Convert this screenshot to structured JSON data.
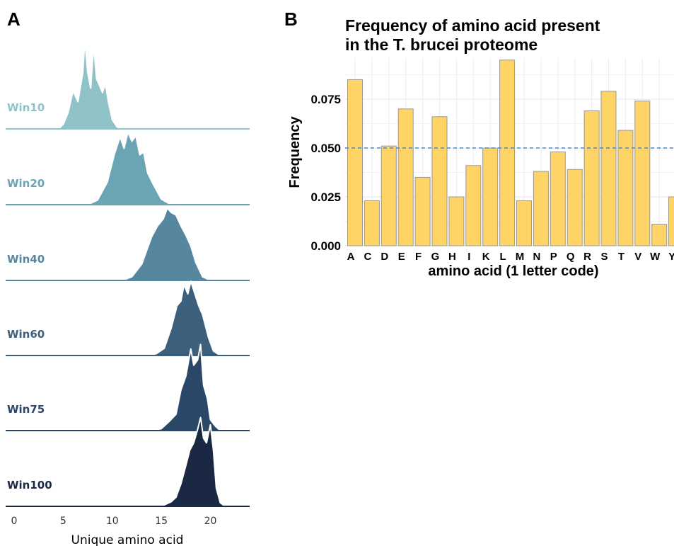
{
  "panels": {
    "a_letter": "A",
    "b_letter": "B"
  },
  "chart_data": [
    {
      "type": "area",
      "subtype": "ridgeline",
      "xlabel": "Unique amino acid",
      "ylabel": "",
      "xlim": [
        0,
        24
      ],
      "xticks": [
        0,
        5,
        10,
        15,
        20
      ],
      "grid": false,
      "series": [
        {
          "name": "Win10",
          "color": "#8fc3c7",
          "x": [
            4.5,
            5.0,
            5.5,
            6.0,
            6.5,
            7.0,
            7.2,
            7.5,
            7.8,
            8.1,
            8.4,
            8.7,
            9.0,
            9.3,
            9.6,
            10.0,
            10.5,
            11.0
          ],
          "y": [
            0.0,
            0.05,
            0.18,
            0.42,
            0.3,
            0.62,
            0.98,
            0.62,
            0.45,
            0.92,
            0.55,
            0.48,
            0.4,
            0.5,
            0.3,
            0.1,
            0.02,
            0.0
          ]
        },
        {
          "name": "Win20",
          "color": "#6ba5b5",
          "x": [
            7.5,
            8.5,
            9.5,
            10.2,
            10.8,
            11.2,
            11.6,
            12.0,
            12.4,
            12.8,
            13.2,
            13.6,
            14.2,
            15.0,
            16.0
          ],
          "y": [
            0.0,
            0.05,
            0.25,
            0.55,
            0.75,
            0.62,
            0.8,
            0.7,
            0.76,
            0.55,
            0.58,
            0.35,
            0.22,
            0.06,
            0.0
          ]
        },
        {
          "name": "Win40",
          "color": "#56879f",
          "x": [
            11.0,
            12.0,
            13.0,
            14.0,
            14.6,
            15.2,
            15.6,
            16.0,
            16.5,
            17.0,
            17.5,
            18.0,
            18.5,
            19.2,
            20.0
          ],
          "y": [
            0.0,
            0.04,
            0.18,
            0.48,
            0.6,
            0.68,
            0.8,
            0.75,
            0.72,
            0.6,
            0.5,
            0.38,
            0.2,
            0.04,
            0.0
          ]
        },
        {
          "name": "Win60",
          "color": "#3c5f7c",
          "x": [
            13.5,
            14.5,
            15.3,
            16.0,
            16.6,
            17.0,
            17.3,
            17.7,
            18.0,
            18.3,
            18.8,
            19.2,
            19.8,
            20.3,
            21.0
          ],
          "y": [
            0.0,
            0.02,
            0.08,
            0.3,
            0.55,
            0.6,
            0.78,
            0.68,
            0.82,
            0.72,
            0.55,
            0.45,
            0.2,
            0.05,
            0.0
          ]
        },
        {
          "name": "Win75",
          "color": "#2b4767",
          "x": [
            14.0,
            15.0,
            15.8,
            16.5,
            17.0,
            17.5,
            18.0,
            18.3,
            18.7,
            19.0,
            19.3,
            19.7,
            20.0,
            20.5,
            21.0
          ],
          "y": [
            0.0,
            0.02,
            0.1,
            0.18,
            0.45,
            0.6,
            0.9,
            0.72,
            0.78,
            0.95,
            0.5,
            0.35,
            0.12,
            0.05,
            0.0
          ]
        },
        {
          "name": "Win100",
          "color": "#1b2844",
          "x": [
            15.0,
            16.0,
            16.5,
            17.0,
            17.5,
            17.9,
            18.3,
            18.7,
            19.0,
            19.3,
            19.6,
            20.0,
            20.3,
            20.6,
            21.0,
            21.5
          ],
          "y": [
            0.0,
            0.05,
            0.1,
            0.25,
            0.45,
            0.62,
            0.7,
            0.85,
            0.98,
            0.75,
            0.7,
            0.9,
            0.62,
            0.2,
            0.04,
            0.0
          ]
        }
      ]
    },
    {
      "type": "bar",
      "title": "Frequency of amino acid present in the T. brucei proteome",
      "title_lines": [
        "Frequency of amino acid present",
        "in the T. brucei proteome"
      ],
      "xlabel": "amino acid (1 letter code)",
      "ylabel": "Frequency",
      "categories": [
        "A",
        "C",
        "D",
        "E",
        "F",
        "G",
        "H",
        "I",
        "K",
        "L",
        "M",
        "N",
        "P",
        "Q",
        "R",
        "S",
        "T",
        "V",
        "W",
        "Y"
      ],
      "values": [
        0.085,
        0.023,
        0.051,
        0.07,
        0.035,
        0.066,
        0.025,
        0.041,
        0.05,
        0.095,
        0.023,
        0.038,
        0.048,
        0.039,
        0.069,
        0.079,
        0.059,
        0.074,
        0.011,
        0.025
      ],
      "ylim": [
        0,
        0.096
      ],
      "yticks": [
        "0.000",
        "0.025",
        "0.050",
        "0.075"
      ],
      "ytick_values": [
        0,
        0.025,
        0.05,
        0.075
      ],
      "reference_line": 0.05,
      "grid": true,
      "bar_color": "#fed467",
      "bar_edge_color": "#999999",
      "reference_line_color": "#3f88d6"
    }
  ]
}
